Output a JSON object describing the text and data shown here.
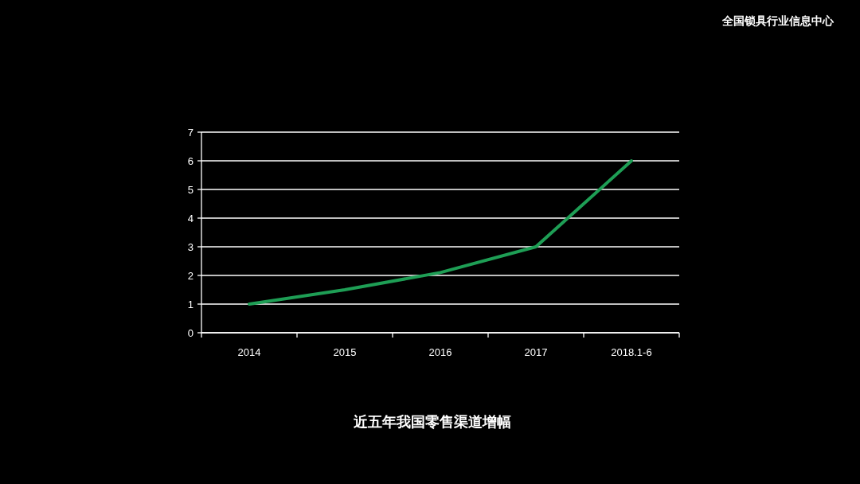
{
  "chart_data": {
    "type": "line",
    "title": "近五年我国零售渠道增幅",
    "categories": [
      "2014",
      "2015",
      "2016",
      "2017",
      "2018.1-6"
    ],
    "values": [
      1.0,
      1.5,
      2.1,
      3.0,
      6.0
    ],
    "color": "#1e9e55",
    "ylim": [
      0,
      7
    ],
    "yticks": [
      0,
      1,
      2,
      3,
      4,
      5,
      6,
      7
    ],
    "grid": "y",
    "annotations": [
      "全国锁具行业信息中心"
    ]
  }
}
